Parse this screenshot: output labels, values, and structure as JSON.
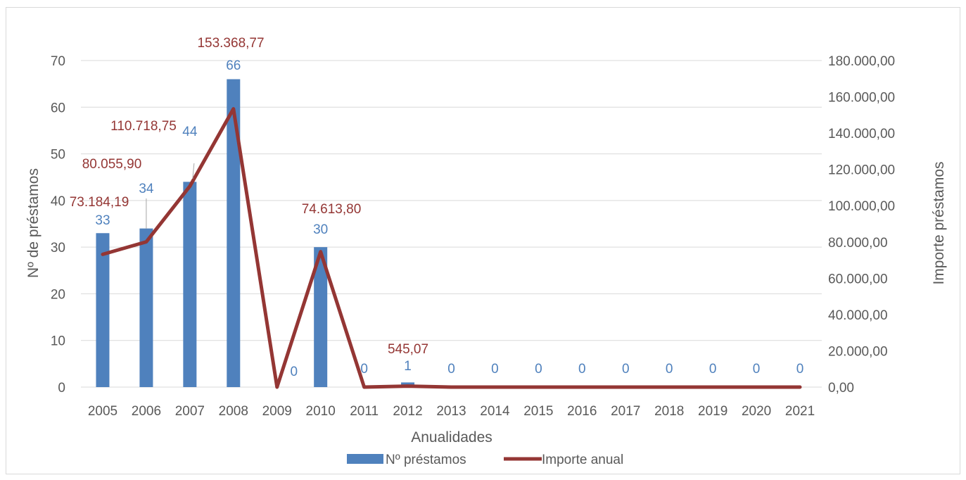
{
  "chart_data": {
    "type": "bar",
    "categories": [
      "2005",
      "2006",
      "2007",
      "2008",
      "2009",
      "2010",
      "2011",
      "2012",
      "2013",
      "2014",
      "2015",
      "2016",
      "2017",
      "2018",
      "2019",
      "2020",
      "2021"
    ],
    "series": [
      {
        "name": "Nº préstamos",
        "type": "bar",
        "axis": "left",
        "color": "#4f81bd",
        "values": [
          33,
          34,
          44,
          66,
          0,
          30,
          0,
          1,
          0,
          0,
          0,
          0,
          0,
          0,
          0,
          0,
          0
        ],
        "labels": [
          "33",
          "34",
          "44",
          "66",
          "0",
          "30",
          "0",
          "1",
          "0",
          "0",
          "0",
          "0",
          "0",
          "0",
          "0",
          "0",
          "0"
        ]
      },
      {
        "name": "Importe anual",
        "type": "line",
        "axis": "right",
        "color": "#943634",
        "values": [
          73184.19,
          80055.9,
          110718.75,
          153368.77,
          0,
          74613.8,
          0,
          545.07,
          0,
          0,
          0,
          0,
          0,
          0,
          0,
          0,
          0
        ],
        "labels": [
          "73.184,19",
          "80.055,90",
          "110.718,75",
          "153.368,77",
          "",
          "74.613,80",
          "",
          "545,07",
          "",
          "",
          "",
          "",
          "",
          "",
          "",
          "",
          ""
        ]
      }
    ],
    "xlabel": "Anualidades",
    "ylabel": "Nº de préstamos",
    "y2label": "Importe préstamos",
    "ylim": [
      0,
      70
    ],
    "y2lim": [
      0,
      180000
    ],
    "yticks": [
      "0",
      "10",
      "20",
      "30",
      "40",
      "50",
      "60",
      "70"
    ],
    "y2ticks": [
      "0,00",
      "20.000,00",
      "40.000,00",
      "60.000,00",
      "80.000,00",
      "100.000,00",
      "120.000,00",
      "140.000,00",
      "160.000,00",
      "180.000,00"
    ],
    "grid": true,
    "legend_position": "bottom",
    "bar_label_color": "#4f81bd",
    "line_label_color": "#943634",
    "gridline_color": "#d9d9d9"
  }
}
